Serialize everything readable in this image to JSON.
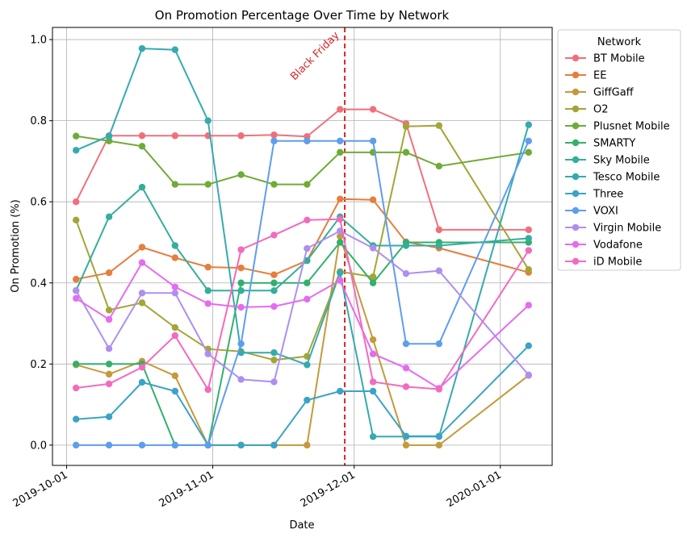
{
  "chart_data": {
    "type": "line",
    "title": "On Promotion Percentage Over Time by Network",
    "xlabel": "Date",
    "ylabel": "On Promotion (%)",
    "x_axis_type": "date",
    "xlim": [
      "2019-09-28",
      "2020-01-12"
    ],
    "ylim": [
      -0.05,
      1.03
    ],
    "x_ticks": [
      "2019-10-01",
      "2019-11-01",
      "2019-12-01",
      "2020-01-01"
    ],
    "y_ticks": [
      0.0,
      0.2,
      0.4,
      0.6,
      0.8,
      1.0
    ],
    "y_tick_labels": [
      "0.0",
      "0.2",
      "0.4",
      "0.6",
      "0.8",
      "1.0"
    ],
    "grid": true,
    "legend_title": "Network",
    "legend_position": "right-outside-top",
    "annotation": {
      "date": "2019-11-29",
      "label": "Black Friday",
      "color": "#d62728"
    },
    "x": [
      "2019-10-03",
      "2019-10-10",
      "2019-10-17",
      "2019-10-24",
      "2019-10-31",
      "2019-11-07",
      "2019-11-14",
      "2019-11-21",
      "2019-11-28",
      "2019-12-05",
      "2019-12-12",
      "2019-12-19",
      "2020-01-07"
    ],
    "series": [
      {
        "name": "BT Mobile",
        "color": "#f0707a",
        "values": [
          0.6,
          0.763,
          0.763,
          0.763,
          0.763,
          0.763,
          0.765,
          0.761,
          0.828,
          0.828,
          0.793,
          0.531,
          0.531
        ]
      },
      {
        "name": "EE",
        "color": "#e47f3c",
        "values": [
          0.409,
          0.425,
          0.488,
          0.462,
          0.439,
          0.437,
          0.42,
          0.455,
          0.607,
          0.605,
          0.501,
          0.486,
          0.426
        ]
      },
      {
        "name": "GiffGaff",
        "color": "#c49a3c",
        "values": [
          0.198,
          0.175,
          0.207,
          0.171,
          0.0,
          0.0,
          0.0,
          0.0,
          0.515,
          0.26,
          0.0,
          0.0,
          0.172
        ]
      },
      {
        "name": "O2",
        "color": "#a4a536",
        "values": [
          0.555,
          0.333,
          0.351,
          0.29,
          0.237,
          0.231,
          0.21,
          0.219,
          0.428,
          0.415,
          0.786,
          0.788,
          0.433
        ]
      },
      {
        "name": "Plusnet Mobile",
        "color": "#6fab37",
        "values": [
          0.762,
          0.75,
          0.737,
          0.643,
          0.643,
          0.667,
          0.643,
          0.643,
          0.722,
          0.722,
          0.722,
          0.688,
          0.722
        ]
      },
      {
        "name": "SMARTY",
        "color": "#33b06a",
        "values": [
          0.2,
          0.2,
          0.2,
          0.0,
          0.0,
          0.4,
          0.4,
          0.4,
          0.5,
          0.4,
          0.5,
          0.5,
          0.5
        ]
      },
      {
        "name": "Sky Mobile",
        "color": "#35ad9c",
        "values": [
          0.381,
          0.563,
          0.636,
          0.492,
          0.381,
          0.381,
          0.381,
          0.455,
          0.563,
          0.492,
          0.492,
          0.492,
          0.51
        ]
      },
      {
        "name": "Tesco Mobile",
        "color": "#36aaaf",
        "values": [
          0.727,
          0.762,
          0.978,
          0.975,
          0.8,
          0.228,
          0.228,
          0.198,
          0.425,
          0.021,
          0.021,
          0.021,
          0.79
        ]
      },
      {
        "name": "Three",
        "color": "#3ba3c6",
        "values": [
          0.064,
          0.07,
          0.155,
          0.133,
          0.0,
          0.0,
          0.0,
          0.111,
          0.133,
          0.133,
          0.022,
          0.022,
          0.245
        ]
      },
      {
        "name": "VOXI",
        "color": "#5f9ded",
        "values": [
          0.0,
          0.0,
          0.0,
          0.0,
          0.0,
          0.25,
          0.75,
          0.75,
          0.75,
          0.75,
          0.25,
          0.25,
          0.75
        ]
      },
      {
        "name": "Virgin Mobile",
        "color": "#ae8ff0",
        "values": [
          0.381,
          0.238,
          0.375,
          0.375,
          0.225,
          0.162,
          0.156,
          0.485,
          0.528,
          0.486,
          0.423,
          0.43,
          0.173
        ]
      },
      {
        "name": "Vodafone",
        "color": "#e46cf0",
        "values": [
          0.362,
          0.31,
          0.45,
          0.39,
          0.349,
          0.34,
          0.342,
          0.36,
          0.406,
          0.225,
          0.19,
          0.14,
          0.345
        ]
      },
      {
        "name": "iD Mobile",
        "color": "#f26bbd",
        "values": [
          0.141,
          0.151,
          0.192,
          0.27,
          0.137,
          0.482,
          0.518,
          0.555,
          0.557,
          0.156,
          0.144,
          0.138,
          0.48
        ]
      }
    ]
  }
}
